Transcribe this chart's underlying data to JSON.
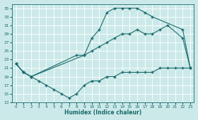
{
  "xlabel": "Humidex (Indice chaleur)",
  "bg_color": "#cce9e9",
  "grid_color": "#b8d8d8",
  "line_color": "#1a6b6b",
  "xlim": [
    -0.5,
    23.5
  ],
  "ylim": [
    13,
    36
  ],
  "xticks": [
    0,
    1,
    2,
    3,
    4,
    5,
    6,
    7,
    8,
    9,
    10,
    11,
    12,
    13,
    14,
    15,
    16,
    17,
    18,
    19,
    20,
    21,
    22,
    23
  ],
  "yticks": [
    13,
    15,
    17,
    19,
    21,
    23,
    25,
    27,
    29,
    31,
    33,
    35
  ],
  "line1_x": [
    0,
    1,
    2,
    9,
    10,
    11,
    12,
    13,
    14,
    15,
    16,
    17,
    18,
    22,
    23
  ],
  "line1_y": [
    22,
    20,
    19,
    24,
    28,
    30,
    34,
    35,
    35,
    35,
    35,
    34,
    33,
    30,
    21
  ],
  "line2_x": [
    0,
    1,
    2,
    8,
    9,
    10,
    11,
    12,
    13,
    14,
    15,
    16,
    17,
    18,
    19,
    20,
    22,
    23
  ],
  "line2_y": [
    22,
    20,
    19,
    24,
    24,
    25,
    26,
    27,
    28,
    29,
    29,
    30,
    29,
    29,
    30,
    31,
    28,
    21
  ],
  "line3_x": [
    0,
    1,
    2,
    3,
    4,
    5,
    6,
    7,
    8,
    9,
    10,
    11,
    12,
    13,
    14,
    15,
    16,
    17,
    18,
    19,
    20,
    21,
    22,
    23
  ],
  "line3_y": [
    22,
    20,
    19,
    18,
    17,
    16,
    15,
    14,
    15,
    17,
    18,
    18,
    19,
    19,
    20,
    20,
    20,
    20,
    20,
    21,
    21,
    21,
    21,
    21
  ]
}
